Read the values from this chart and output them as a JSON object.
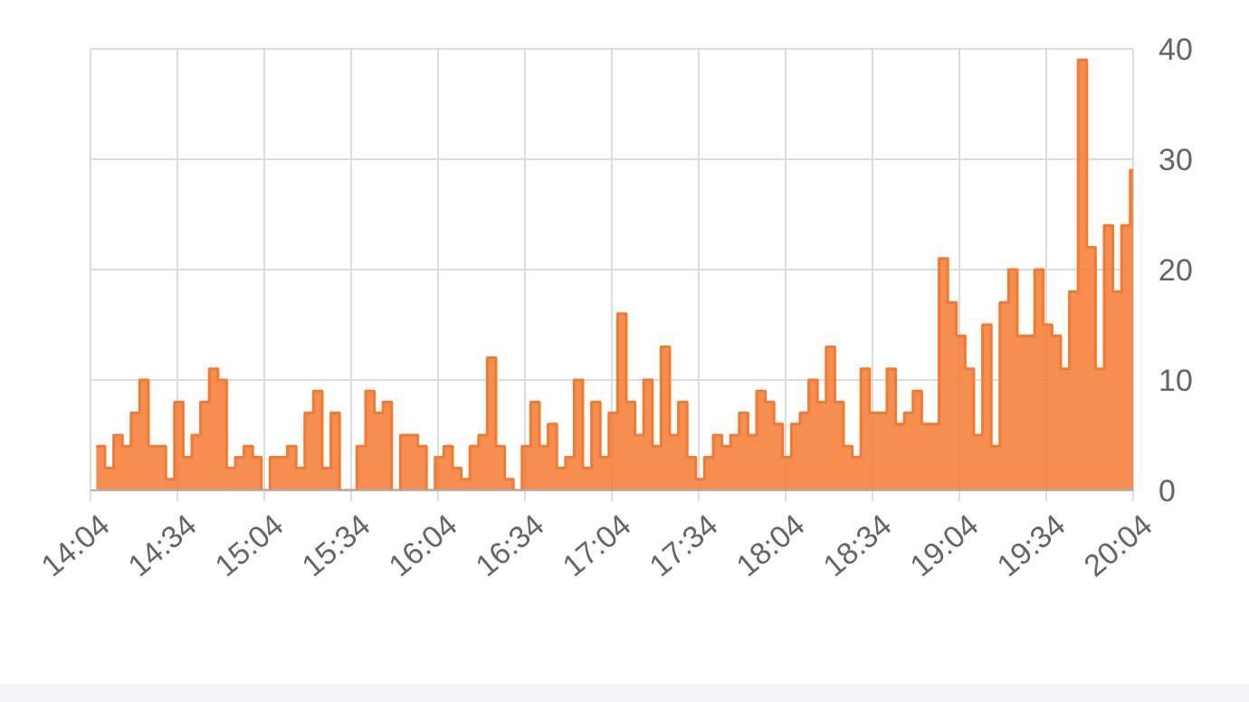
{
  "chart_data": {
    "type": "step",
    "x": [
      14.1,
      14.15,
      14.2,
      14.25,
      14.3,
      14.35,
      14.4,
      14.45,
      14.5,
      14.55,
      14.6,
      14.65,
      14.7,
      14.75,
      14.8,
      14.85,
      14.9,
      14.95,
      15,
      15.05,
      15.1,
      15.15,
      15.2,
      15.25,
      15.3,
      15.35,
      15.4,
      15.45,
      15.5,
      15.55,
      15.6,
      15.65,
      15.7,
      15.75,
      15.8,
      15.85,
      15.9,
      15.95,
      16,
      16.05,
      16.1,
      16.15,
      16.2,
      16.25,
      16.3,
      16.35,
      16.4,
      16.45,
      16.5,
      16.55,
      16.6,
      16.65,
      16.7,
      16.75,
      16.8,
      16.85,
      16.9,
      16.95,
      17,
      17.05,
      17.1,
      17.15,
      17.2,
      17.25,
      17.3,
      17.35,
      17.4,
      17.45,
      17.5,
      17.55,
      17.6,
      17.65,
      17.7,
      17.75,
      17.8,
      17.85,
      17.9,
      17.95,
      18,
      18.05,
      18.1,
      18.15,
      18.2,
      18.25,
      18.3,
      18.35,
      18.4,
      18.45,
      18.5,
      18.55,
      18.6,
      18.65,
      18.7,
      18.75,
      18.8,
      18.85,
      18.9,
      18.95,
      19,
      19.05,
      19.1,
      19.15,
      19.2,
      19.25,
      19.3,
      19.35,
      19.4,
      19.45,
      19.5,
      19.55,
      19.6,
      19.65,
      19.7,
      19.75,
      19.8,
      19.85,
      19.9,
      19.95,
      20,
      20.05
    ],
    "series": [
      {
        "color": "#f47a32",
        "values": [
          4,
          2,
          5,
          4,
          7,
          10,
          4,
          4,
          1,
          8,
          3,
          5,
          8,
          11,
          10,
          2,
          3,
          4,
          3,
          0,
          3,
          3,
          4,
          2,
          7,
          9,
          2,
          7,
          0,
          0,
          4,
          9,
          7,
          8,
          0,
          5,
          5,
          4,
          0,
          3,
          4,
          2,
          1,
          4,
          5,
          12,
          4,
          1,
          0,
          4,
          8,
          4,
          6,
          2,
          3,
          10,
          2,
          8,
          3,
          7,
          16,
          8,
          5,
          10,
          4,
          13,
          5,
          8,
          3,
          1,
          3,
          5,
          4,
          5,
          7,
          5,
          9,
          8,
          6,
          3,
          6,
          7,
          10,
          8,
          13,
          8,
          4,
          3,
          11,
          7,
          7,
          11,
          6,
          7,
          9,
          6,
          6,
          21,
          17,
          14,
          11,
          5,
          15,
          4,
          17,
          20,
          14,
          14,
          20,
          15,
          14,
          11,
          18,
          39,
          22,
          11,
          24,
          18,
          24,
          29
        ]
      }
    ],
    "xlim": [
      14.0667,
      20.0667
    ],
    "xticks": [
      {
        "value": 14.0667,
        "label": "14:04"
      },
      {
        "value": 14.5667,
        "label": "14:34"
      },
      {
        "value": 15.0667,
        "label": "15:04"
      },
      {
        "value": 15.5667,
        "label": "15:34"
      },
      {
        "value": 16.0667,
        "label": "16:04"
      },
      {
        "value": 16.5667,
        "label": "16:34"
      },
      {
        "value": 17.0667,
        "label": "17:04"
      },
      {
        "value": 17.5667,
        "label": "17:34"
      },
      {
        "value": 18.0667,
        "label": "18:04"
      },
      {
        "value": 18.5667,
        "label": "18:34"
      },
      {
        "value": 19.0667,
        "label": "19:04"
      },
      {
        "value": 19.5667,
        "label": "19:34"
      },
      {
        "value": 20.0667,
        "label": "20:04"
      }
    ],
    "ylim": [
      0,
      40
    ],
    "yticks": [
      0,
      10,
      20,
      30,
      40
    ],
    "grid": true
  }
}
